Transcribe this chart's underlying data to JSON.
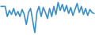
{
  "values": [
    5.0,
    5.0,
    5.0,
    0.0,
    3.0,
    1.0,
    4.0,
    0.5,
    2.5,
    0.0,
    3.5,
    1.0,
    -4.0,
    2.0,
    4.0,
    -2.0,
    -8.0,
    2.0,
    5.0,
    0.0,
    4.5,
    2.0,
    -1.0,
    4.0,
    0.0,
    5.0,
    1.0,
    7.0,
    3.0,
    6.0,
    2.5,
    5.5,
    1.5,
    4.5,
    0.5,
    3.5,
    6.5,
    2.0,
    5.0,
    1.0,
    4.0,
    0.5,
    3.5,
    2.0,
    1.5
  ],
  "line_color": "#3a8fc7",
  "line_width": 1.2,
  "background_color": "#ffffff"
}
